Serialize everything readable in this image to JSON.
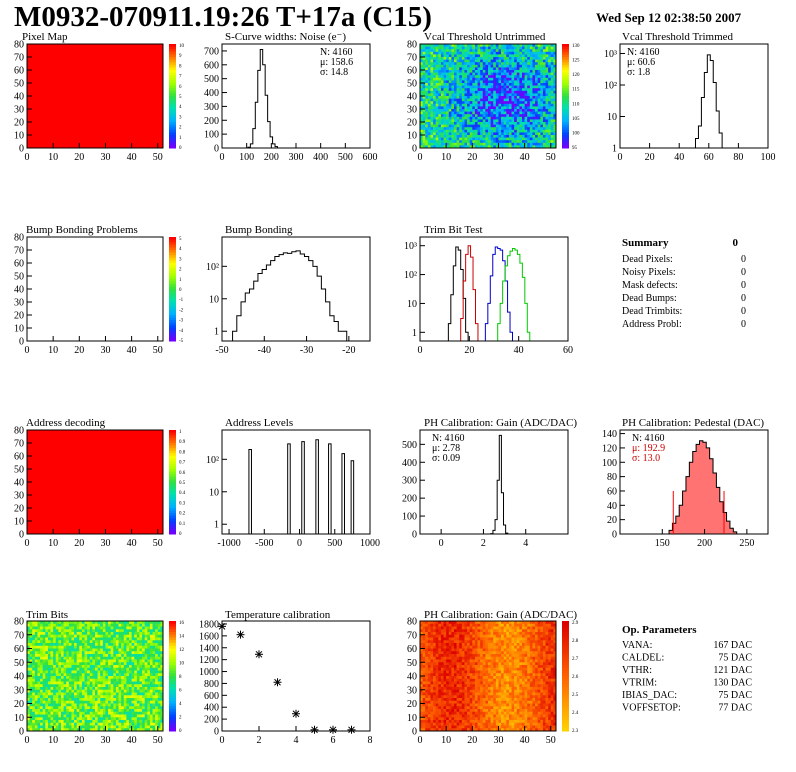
{
  "header": {
    "title": "M0932-070911.19:26 T+17a (C15)",
    "date": "Wed Sep 12 02:38:50 2007"
  },
  "colors": {
    "axis": "#000000",
    "pixel_map_fill": "#ff0000",
    "trim_test_series": [
      "#000000",
      "#cc0000",
      "#0000cc",
      "#00cc00"
    ],
    "pedestal_fill": "#ff0000",
    "pedestal_stats_text": "#cc0000"
  },
  "chart_data": [
    {
      "id": "pixel-map",
      "type": "heatmap",
      "title": "Pixel Map",
      "xlim": [
        0,
        52
      ],
      "ylim": [
        0,
        80
      ],
      "xticks": [
        0,
        10,
        20,
        30,
        40,
        50
      ],
      "yticks": [
        0,
        10,
        20,
        30,
        40,
        50,
        60,
        70,
        80
      ],
      "fill": "uniform-max",
      "palette_ticks": [
        10,
        9,
        8,
        7,
        6,
        5,
        4,
        3,
        2,
        1,
        0
      ]
    },
    {
      "id": "scurve-widths",
      "type": "bar",
      "title": "S-Curve widths: Noise (e⁻)",
      "xlim": [
        0,
        600
      ],
      "ylim": [
        0,
        750
      ],
      "xticks": [
        0,
        100,
        200,
        300,
        400,
        500,
        600
      ],
      "yticks": [
        0,
        100,
        200,
        300,
        400,
        500,
        600,
        700
      ],
      "stats": [
        "N: 4160",
        "μ: 158.6",
        "σ: 14.8"
      ],
      "x": [
        100,
        110,
        120,
        130,
        140,
        150,
        160,
        170,
        180,
        190,
        200,
        210,
        220,
        230
      ],
      "values": [
        0,
        5,
        30,
        140,
        330,
        560,
        710,
        600,
        380,
        190,
        80,
        30,
        10,
        0
      ]
    },
    {
      "id": "vcal-untrimmed",
      "type": "heatmap",
      "title": "Vcal Threshold Untrimmed",
      "xlim": [
        0,
        52
      ],
      "ylim": [
        0,
        80
      ],
      "xticks": [
        0,
        10,
        20,
        30,
        40,
        50
      ],
      "yticks": [
        0,
        10,
        20,
        30,
        40,
        50,
        60,
        70,
        80
      ],
      "palette": "rainbow",
      "palette_ticks": [
        130,
        125,
        120,
        115,
        110,
        105,
        100,
        95
      ]
    },
    {
      "id": "vcal-trimmed",
      "type": "bar",
      "log_y": true,
      "title": "Vcal Threshold Trimmed",
      "xlim": [
        0,
        100
      ],
      "ylim": [
        1,
        2000
      ],
      "xticks": [
        0,
        20,
        40,
        60,
        80,
        100
      ],
      "yticks": [
        1,
        10,
        100,
        1000
      ],
      "ytick_labels": [
        "1",
        "10",
        "10²",
        "10³"
      ],
      "stats": [
        "N: 4160",
        "μ: 60.6",
        "σ:  1.8"
      ],
      "x": [
        52,
        54,
        56,
        58,
        60,
        62,
        64,
        66,
        68,
        70
      ],
      "values": [
        2,
        5,
        40,
        250,
        900,
        600,
        120,
        15,
        3,
        1
      ]
    },
    {
      "id": "bump-problems",
      "type": "heatmap",
      "title": "Bump Bonding Problems",
      "xlim": [
        0,
        52
      ],
      "ylim": [
        0,
        80
      ],
      "xticks": [
        0,
        10,
        20,
        30,
        40,
        50
      ],
      "yticks": [
        0,
        10,
        20,
        30,
        40,
        50,
        60,
        70,
        80
      ],
      "fill": "empty",
      "palette_ticks": [
        5,
        4,
        3,
        2,
        1,
        0,
        -1,
        -2,
        -3,
        -4,
        -5
      ]
    },
    {
      "id": "bump-bonding",
      "type": "bar",
      "log_y": true,
      "title": "Bump Bonding",
      "xlim": [
        -50,
        -15
      ],
      "ylim": [
        0.5,
        800
      ],
      "xticks": [
        -50,
        -40,
        -30,
        -20
      ],
      "yticks": [
        1,
        10,
        100
      ],
      "ytick_labels": [
        "1",
        "10",
        "10²"
      ],
      "x": [
        -47,
        -46,
        -45,
        -44,
        -43,
        -42,
        -41,
        -40,
        -39,
        -38,
        -37,
        -36,
        -35,
        -34,
        -33,
        -32,
        -31,
        -30,
        -29,
        -28,
        -27,
        -26,
        -25,
        -24,
        -23,
        -22,
        -21
      ],
      "values": [
        1,
        3,
        8,
        15,
        20,
        35,
        60,
        80,
        110,
        150,
        200,
        230,
        260,
        250,
        280,
        300,
        240,
        200,
        150,
        100,
        50,
        20,
        8,
        3,
        2,
        1,
        1
      ]
    },
    {
      "id": "trim-bit-test",
      "type": "line",
      "log_y": true,
      "title": "Trim Bit Test",
      "xlim": [
        0,
        60
      ],
      "ylim": [
        0.5,
        2000
      ],
      "xticks": [
        0,
        20,
        40,
        60
      ],
      "yticks": [
        1,
        10,
        100,
        1000
      ],
      "ytick_labels": [
        "1",
        "10",
        "10²",
        "10³"
      ],
      "series": [
        {
          "x": [
            12,
            13,
            14,
            15,
            16,
            17,
            18,
            19
          ],
          "values": [
            2,
            20,
            200,
            900,
            700,
            150,
            15,
            1
          ]
        },
        {
          "x": [
            17,
            18,
            19,
            20,
            21,
            22,
            23
          ],
          "values": [
            3,
            60,
            500,
            1000,
            400,
            30,
            2
          ]
        },
        {
          "x": [
            27,
            28,
            29,
            30,
            31,
            32,
            33,
            34,
            35,
            36,
            37
          ],
          "values": [
            2,
            10,
            90,
            500,
            900,
            800,
            700,
            300,
            60,
            5,
            1
          ]
        },
        {
          "x": [
            32,
            33,
            34,
            35,
            36,
            37,
            38,
            39,
            40,
            41,
            42,
            43,
            44
          ],
          "values": [
            2,
            10,
            60,
            200,
            450,
            650,
            800,
            700,
            500,
            250,
            80,
            10,
            1
          ]
        }
      ]
    },
    {
      "id": "summary",
      "type": "table",
      "title": "Summary",
      "total": "0",
      "rows": [
        {
          "label": "Dead Pixels:",
          "value": "0"
        },
        {
          "label": "Noisy Pixels:",
          "value": "0"
        },
        {
          "label": "Mask defects:",
          "value": "0"
        },
        {
          "label": "Dead Bumps:",
          "value": "0"
        },
        {
          "label": "Dead Trimbits:",
          "value": "0"
        },
        {
          "label": "Address Probl:",
          "value": "0"
        }
      ]
    },
    {
      "id": "address-decoding",
      "type": "heatmap",
      "title": "Address decoding",
      "xlim": [
        0,
        52
      ],
      "ylim": [
        0,
        80
      ],
      "xticks": [
        0,
        10,
        20,
        30,
        40,
        50
      ],
      "yticks": [
        0,
        10,
        20,
        30,
        40,
        50,
        60,
        70,
        80
      ],
      "fill": "uniform-max",
      "palette_ticks": [
        1,
        0.9,
        0.8,
        0.7,
        0.6,
        0.5,
        0.4,
        0.3,
        0.2,
        0.1,
        0
      ]
    },
    {
      "id": "address-levels",
      "type": "bar",
      "log_y": true,
      "title": "Address Levels",
      "xlim": [
        -1100,
        1000
      ],
      "ylim": [
        0.5,
        800
      ],
      "xticks": [
        -1000,
        -500,
        0,
        500,
        1000
      ],
      "yticks": [
        1,
        10,
        100
      ],
      "ytick_labels": [
        "1",
        "10",
        "10²"
      ],
      "peaks": [
        {
          "x": -700,
          "value": 200
        },
        {
          "x": -150,
          "value": 300
        },
        {
          "x": 50,
          "value": 350
        },
        {
          "x": 250,
          "value": 400
        },
        {
          "x": 430,
          "value": 300
        },
        {
          "x": 620,
          "value": 150
        },
        {
          "x": 750,
          "value": 90
        }
      ]
    },
    {
      "id": "ph-gain",
      "type": "bar",
      "title": "PH Calibration: Gain (ADC/DAC)",
      "xlim": [
        -1,
        6
      ],
      "ylim": [
        0,
        580
      ],
      "xticks": [
        0,
        2,
        4
      ],
      "yticks": [
        0,
        100,
        200,
        300,
        400,
        500
      ],
      "stats": [
        "N: 4160",
        "μ: 2.78",
        "σ: 0.09"
      ],
      "x": [
        2.4,
        2.5,
        2.6,
        2.7,
        2.8,
        2.9,
        3.0,
        3.1
      ],
      "values": [
        2,
        20,
        80,
        300,
        550,
        230,
        50,
        5
      ]
    },
    {
      "id": "ph-pedestal",
      "type": "bar",
      "title": "PH Calibration: Pedestal (DAC)",
      "xlim": [
        100,
        275
      ],
      "ylim": [
        0,
        145
      ],
      "xticks": [
        150,
        200,
        250
      ],
      "yticks": [
        0,
        20,
        40,
        60,
        80,
        100,
        120,
        140
      ],
      "stats": [
        "N: 4160",
        "μ: 192.9",
        "σ: 13.0"
      ],
      "markers": [
        163,
        223
      ],
      "x": [
        160,
        164,
        168,
        172,
        176,
        180,
        184,
        188,
        192,
        196,
        200,
        204,
        208,
        212,
        216,
        220,
        224,
        228,
        232,
        236
      ],
      "values": [
        5,
        15,
        25,
        40,
        60,
        80,
        100,
        115,
        125,
        130,
        128,
        120,
        105,
        85,
        65,
        45,
        30,
        18,
        8,
        3
      ]
    },
    {
      "id": "trim-bits",
      "type": "heatmap",
      "title": "Trim Bits",
      "xlim": [
        0,
        52
      ],
      "ylim": [
        0,
        80
      ],
      "xticks": [
        0,
        10,
        20,
        30,
        40,
        50
      ],
      "yticks": [
        0,
        10,
        20,
        30,
        40,
        50,
        60,
        70,
        80
      ],
      "palette": "rainbow",
      "palette_ticks": [
        16,
        14,
        12,
        10,
        8,
        6,
        4,
        2,
        0
      ]
    },
    {
      "id": "temperature-calibration",
      "type": "scatter",
      "title": "Temperature calibration",
      "xlim": [
        0,
        8
      ],
      "ylim": [
        0,
        1850
      ],
      "xticks": [
        0,
        2,
        4,
        6,
        8
      ],
      "yticks": [
        0,
        200,
        400,
        600,
        800,
        1000,
        1200,
        1400,
        1600,
        1800
      ],
      "x": [
        0,
        1,
        2,
        3,
        4,
        5,
        6,
        7
      ],
      "values": [
        1760,
        1620,
        1290,
        820,
        290,
        20,
        20,
        20
      ]
    },
    {
      "id": "ph-gain-map",
      "type": "heatmap",
      "title": "PH Calibration: Gain (ADC/DAC)",
      "xlim": [
        0,
        52
      ],
      "ylim": [
        0,
        80
      ],
      "xticks": [
        0,
        10,
        20,
        30,
        40,
        50
      ],
      "yticks": [
        0,
        10,
        20,
        30,
        40,
        50,
        60,
        70,
        80
      ],
      "palette": "heat",
      "palette_ticks": [
        2.9,
        2.8,
        2.7,
        2.6,
        2.5,
        2.4,
        2.3
      ]
    },
    {
      "id": "op-parameters",
      "type": "table",
      "title": "Op. Parameters",
      "rows": [
        {
          "label": "VANA:",
          "value": "167 DAC"
        },
        {
          "label": "CALDEL:",
          "value": "75 DAC"
        },
        {
          "label": "VTHR:",
          "value": "121 DAC"
        },
        {
          "label": "VTRIM:",
          "value": "130 DAC"
        },
        {
          "label": "IBIAS_DAC:",
          "value": "75 DAC"
        },
        {
          "label": "VOFFSETOP:",
          "value": "77 DAC"
        }
      ]
    }
  ]
}
